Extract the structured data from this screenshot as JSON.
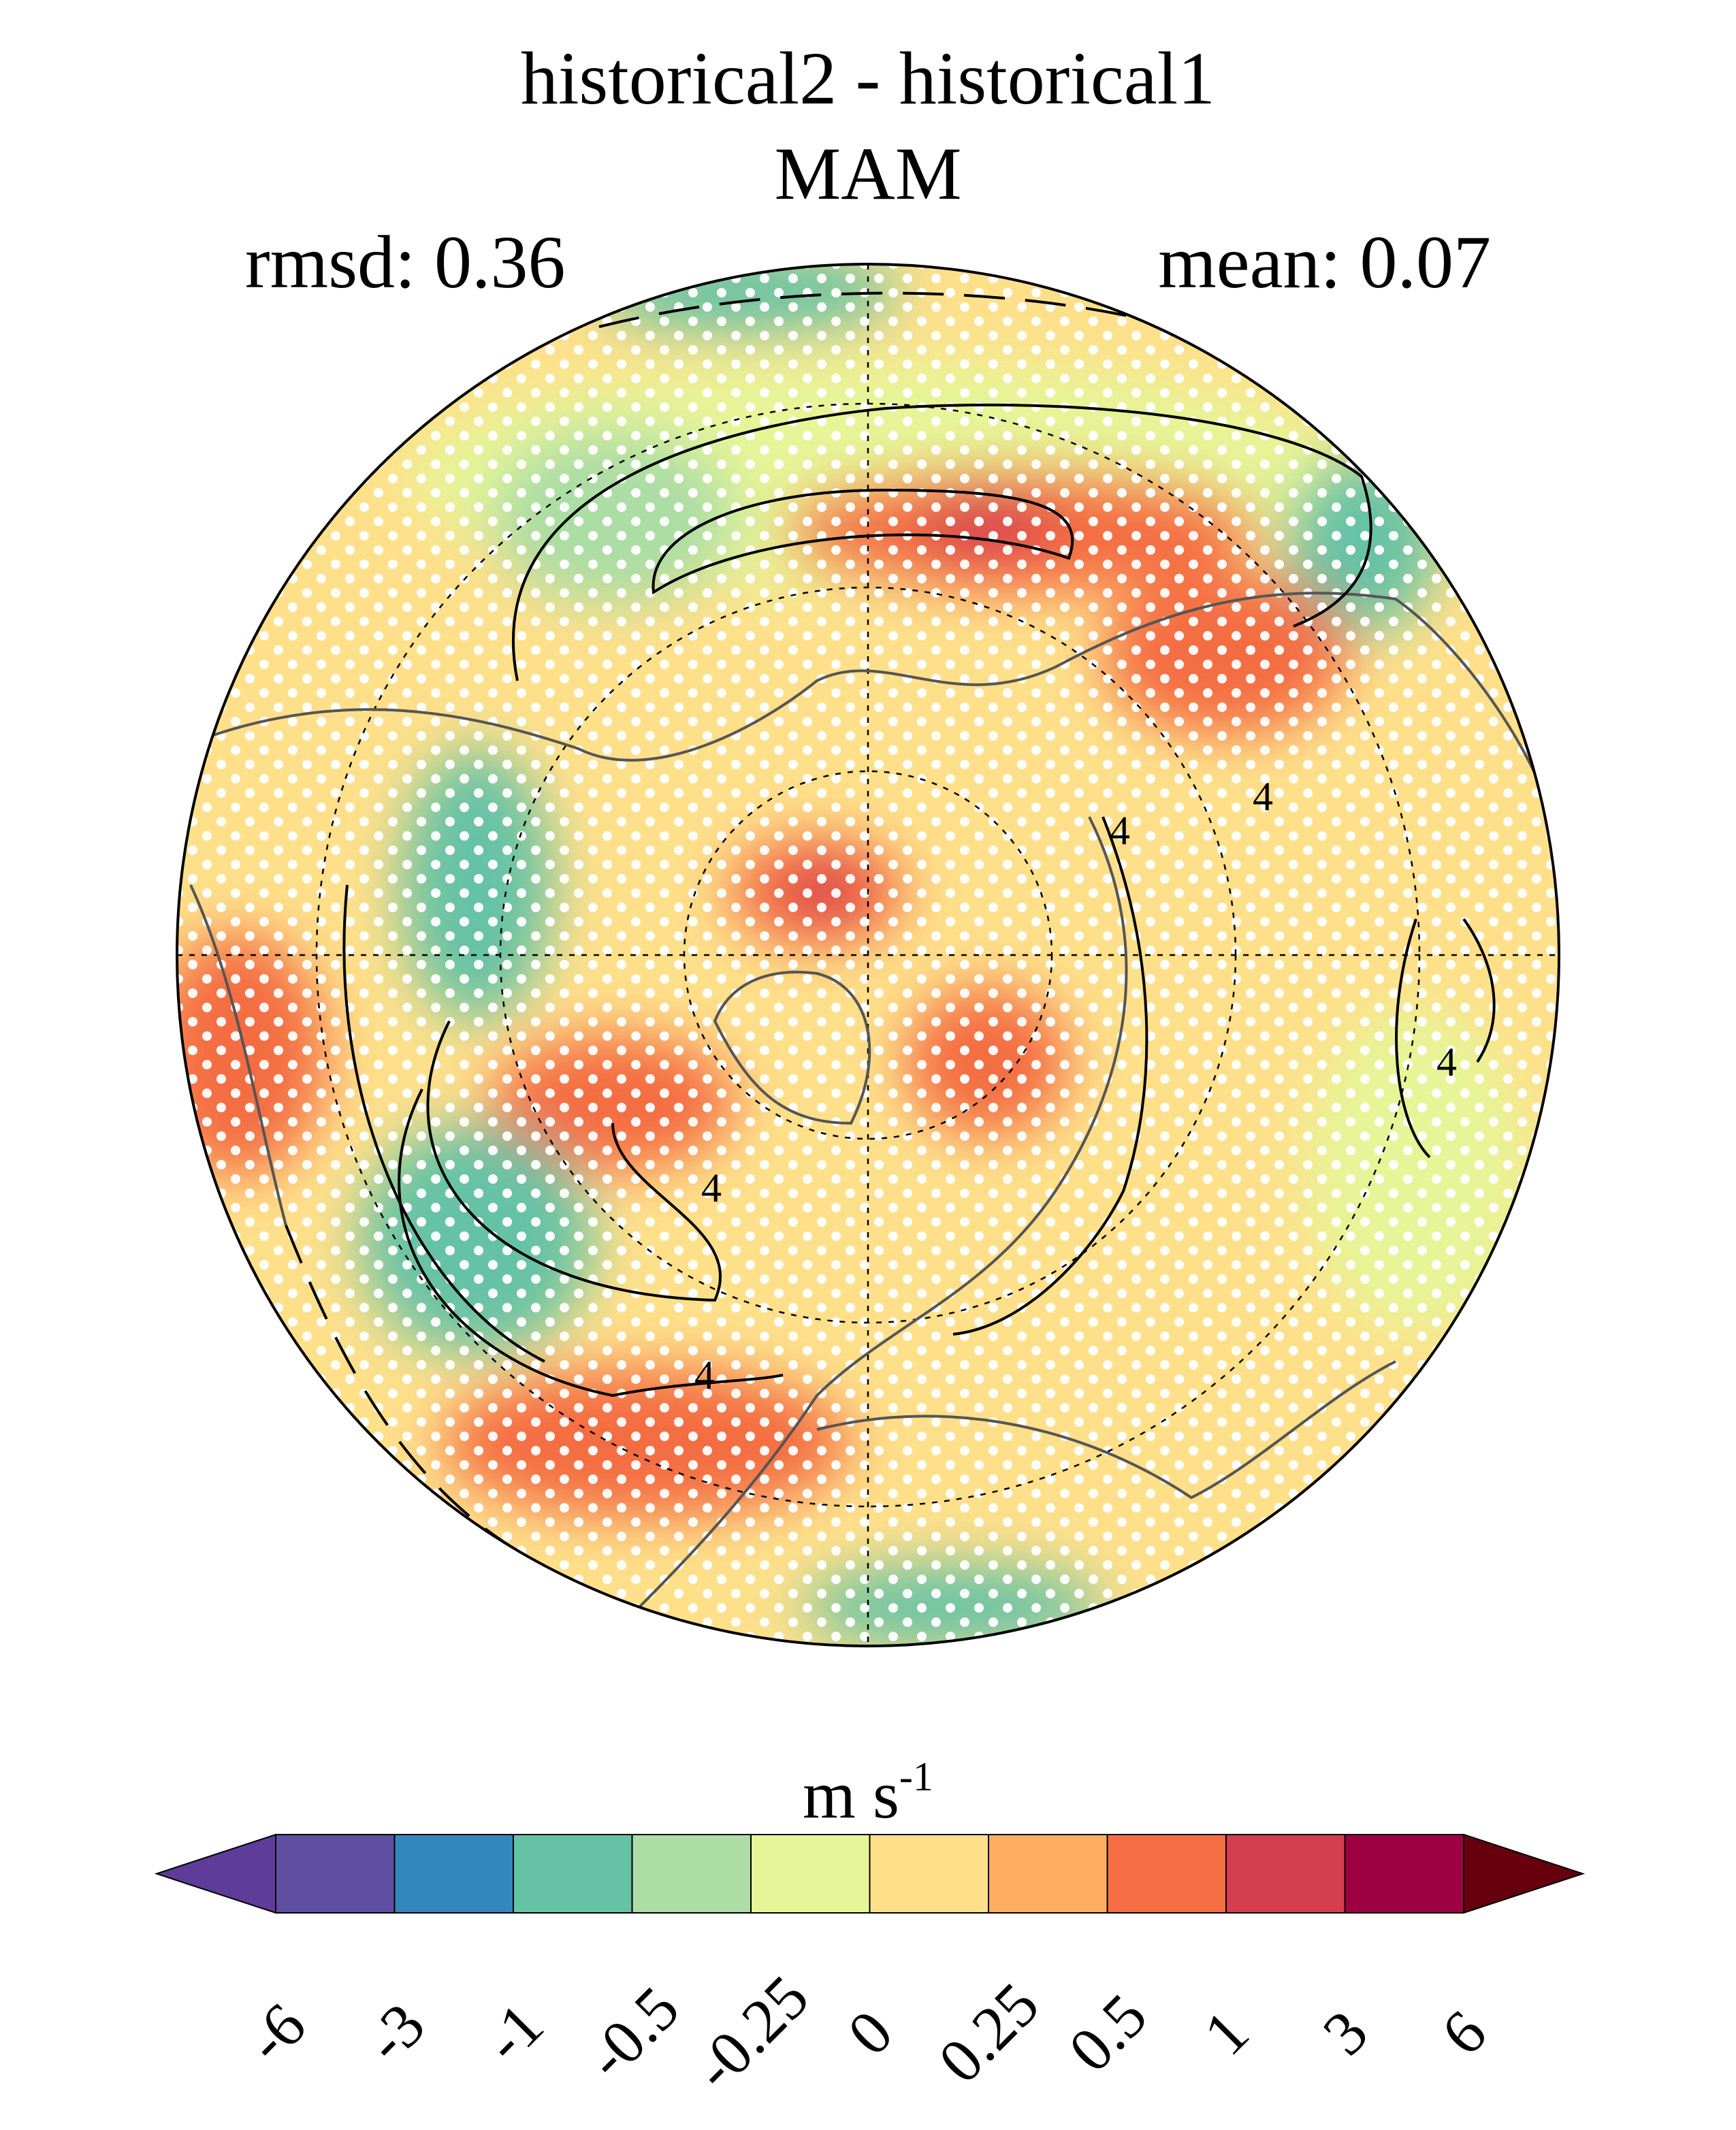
{
  "title": "historical2 - historical1",
  "season": "MAM",
  "rmsd_label": "rmsd: 0.36",
  "mean_label": "mean: 0.07",
  "units_base": "m s",
  "units_exp": "-1",
  "contour_labels": [
    "4",
    "4",
    "4",
    "4",
    "4"
  ],
  "colorbar": {
    "ticks": [
      "-6",
      "-3",
      "-1",
      "-0.5",
      "-0.25",
      "0",
      "0.25",
      "0.5",
      "1",
      "3",
      "6"
    ],
    "colors": [
      "#5e3c99",
      "#5e4fa2",
      "#3288bd",
      "#66c2a5",
      "#abdda4",
      "#e6f598",
      "#fee08b",
      "#fdae61",
      "#f46d43",
      "#d53e4f",
      "#9e0142",
      "#67000d"
    ]
  }
}
